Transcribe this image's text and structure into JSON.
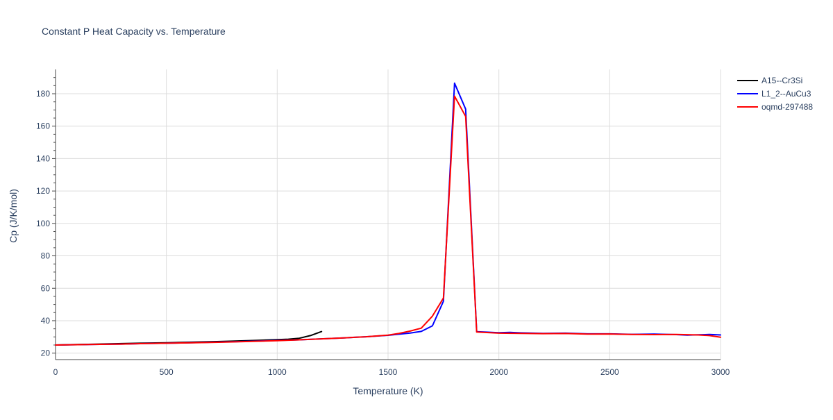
{
  "chart_data": {
    "type": "line",
    "title": "Constant P Heat Capacity vs. Temperature",
    "xlabel": "Temperature (K)",
    "ylabel": "Cp (J/K/mol)",
    "xlim": [
      0,
      3000
    ],
    "ylim": [
      16,
      195
    ],
    "x_ticks": [
      0,
      500,
      1000,
      1500,
      2000,
      2500,
      3000
    ],
    "y_ticks": [
      20,
      40,
      60,
      80,
      100,
      120,
      140,
      160,
      180
    ],
    "grid": true,
    "legend_position": "top-right, outside plot",
    "series": [
      {
        "name": "A15--Cr3Si",
        "color": "#000000",
        "x": [
          0,
          100,
          200,
          300,
          400,
          500,
          600,
          700,
          800,
          900,
          1000,
          1050,
          1100,
          1150,
          1200
        ],
        "y": [
          25.0,
          25.3,
          25.6,
          25.9,
          26.2,
          26.4,
          26.7,
          27.0,
          27.4,
          27.8,
          28.3,
          28.6,
          29.2,
          30.8,
          33.3
        ]
      },
      {
        "name": "L1_2--AuCu3",
        "color": "#0000ff",
        "x": [
          0,
          100,
          200,
          300,
          400,
          500,
          600,
          700,
          800,
          900,
          1000,
          1100,
          1200,
          1300,
          1400,
          1500,
          1600,
          1650,
          1700,
          1750,
          1800,
          1850,
          1900,
          2000,
          2050,
          2100,
          2200,
          2300,
          2400,
          2500,
          2600,
          2700,
          2800,
          2850,
          2900,
          2950,
          3000
        ],
        "y": [
          25.0,
          25.2,
          25.4,
          25.6,
          25.9,
          26.1,
          26.4,
          26.7,
          27.0,
          27.4,
          27.8,
          28.2,
          28.8,
          29.4,
          30.1,
          31.0,
          32.4,
          33.4,
          36.8,
          52.0,
          186.5,
          170.5,
          33.2,
          32.6,
          32.8,
          32.5,
          32.2,
          32.3,
          31.9,
          31.9,
          31.6,
          31.7,
          31.4,
          31.1,
          31.3,
          31.5,
          31.2
        ]
      },
      {
        "name": "oqmd-297488",
        "color": "#ff0000",
        "x": [
          0,
          100,
          200,
          300,
          400,
          500,
          600,
          700,
          800,
          900,
          1000,
          1100,
          1200,
          1300,
          1400,
          1500,
          1550,
          1600,
          1650,
          1700,
          1750,
          1800,
          1850,
          1900,
          2000,
          2100,
          2200,
          2300,
          2400,
          2500,
          2600,
          2700,
          2800,
          2900,
          2950,
          3000
        ],
        "y": [
          25.0,
          25.2,
          25.4,
          25.6,
          25.9,
          26.1,
          26.3,
          26.6,
          26.9,
          27.3,
          27.7,
          28.2,
          28.8,
          29.4,
          30.1,
          31.1,
          32.2,
          33.6,
          35.4,
          42.8,
          54.0,
          178.5,
          166.0,
          33.0,
          32.3,
          32.2,
          32.0,
          32.1,
          31.7,
          31.8,
          31.5,
          31.4,
          31.5,
          31.2,
          30.8,
          29.8
        ]
      }
    ]
  }
}
